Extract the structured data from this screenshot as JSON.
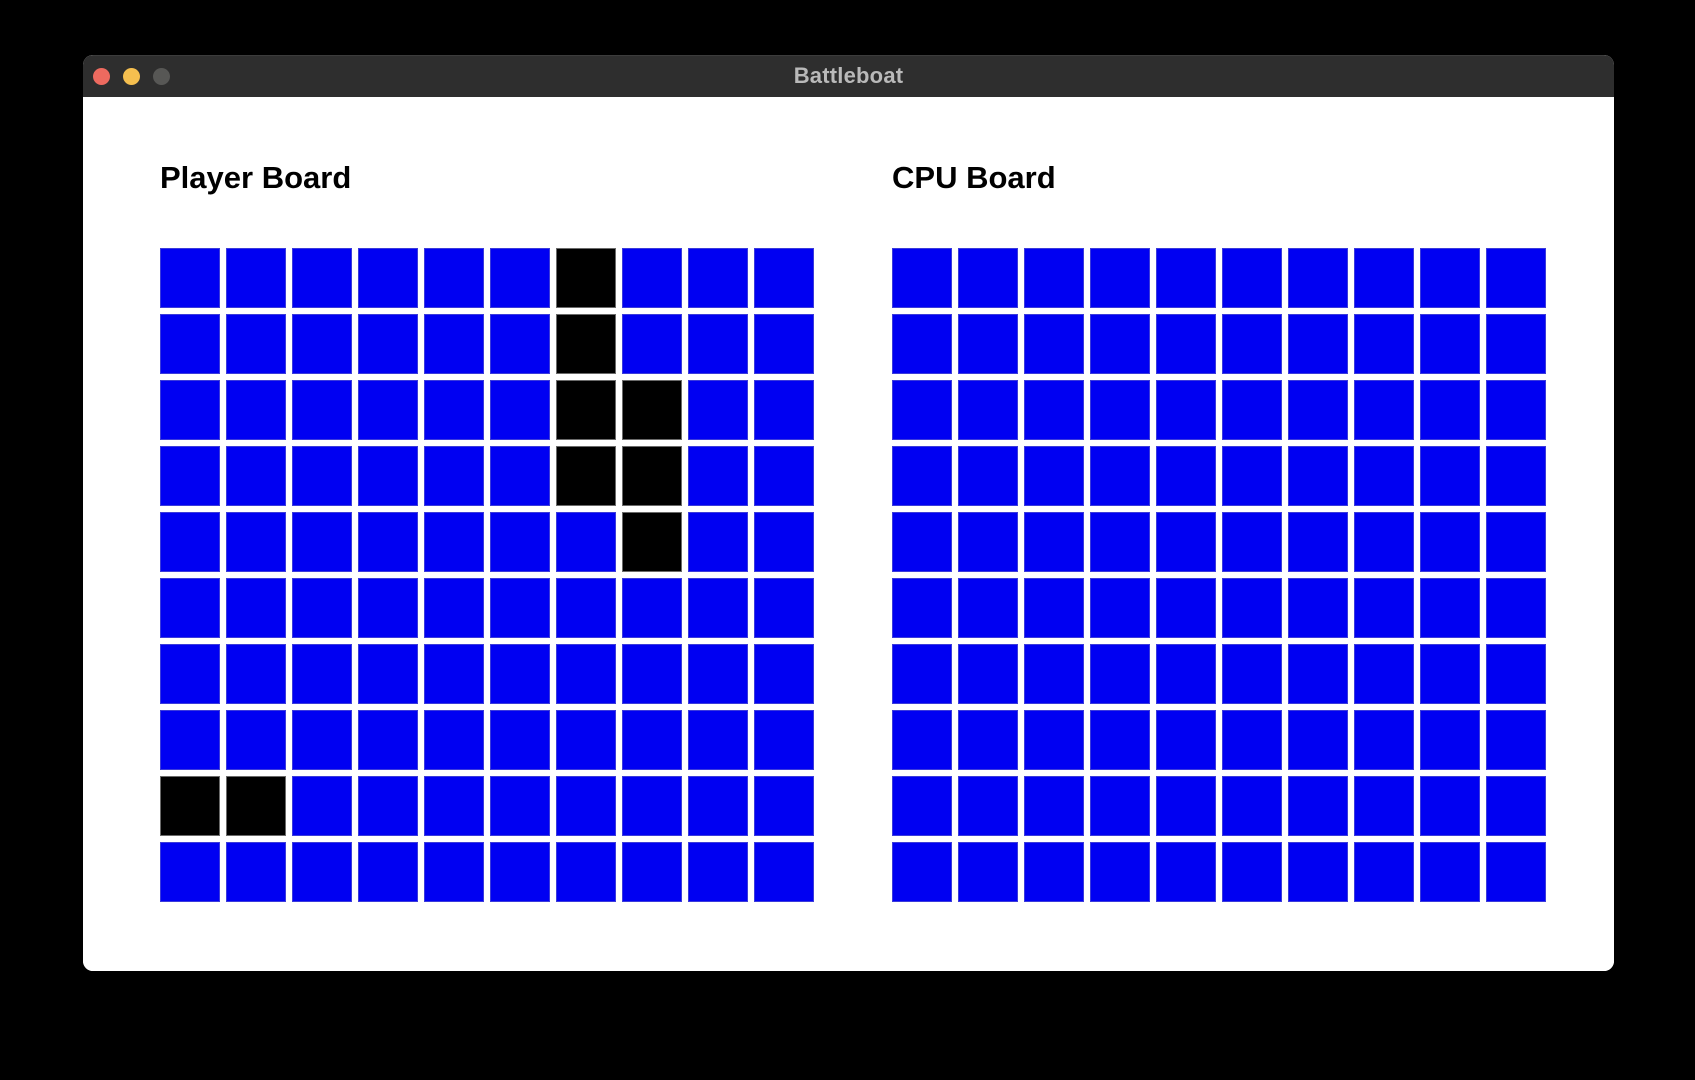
{
  "window": {
    "title": "Battleboat",
    "titlebar_bg": "#2e2e2e",
    "title_color": "#b9b9b9",
    "traffic_lights": [
      {
        "name": "close",
        "color": "#ed6a5f"
      },
      {
        "name": "minimize",
        "color": "#f5bf4f"
      },
      {
        "name": "zoom",
        "color": "#575755"
      }
    ]
  },
  "colors": {
    "page_bg": "#000000",
    "window_bg": "#ffffff",
    "water": "#0000f2",
    "ship": "#000000"
  },
  "boards": {
    "player": {
      "title": "Player Board",
      "grid_size": 10,
      "rows": [
        "......S...",
        "......S...",
        "......SS..",
        "......SS..",
        ".......S..",
        "..........",
        "..........",
        "..........",
        "SS........",
        ".........."
      ]
    },
    "cpu": {
      "title": "CPU Board",
      "grid_size": 10,
      "rows": [
        "..........",
        "..........",
        "..........",
        "..........",
        "..........",
        "..........",
        "..........",
        "..........",
        "..........",
        ".........."
      ]
    }
  }
}
